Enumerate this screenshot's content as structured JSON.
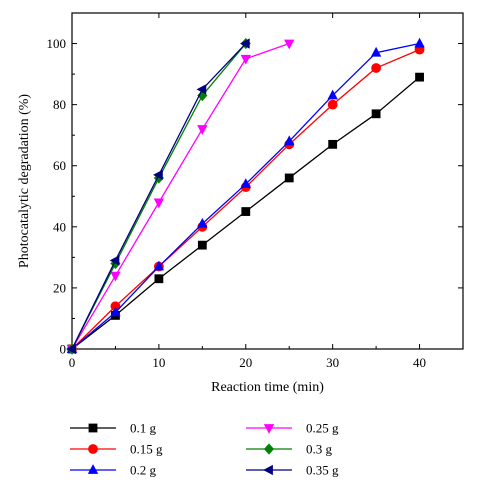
{
  "chart_data": {
    "type": "line",
    "title": "",
    "xlabel": "Reaction time (min)",
    "ylabel": "Photocatalytic degradation (%)",
    "xlim": [
      0,
      45
    ],
    "ylim": [
      0,
      110
    ],
    "xticks": [
      0,
      10,
      20,
      30,
      40
    ],
    "yticks": [
      0,
      20,
      40,
      60,
      80,
      100
    ],
    "grid": false,
    "legend_position": "bottom",
    "series": [
      {
        "name": "0.1 g",
        "color": "#000000",
        "marker": "square",
        "x": [
          0,
          5,
          10,
          15,
          20,
          25,
          30,
          35,
          40
        ],
        "y": [
          0,
          11,
          23,
          34,
          45,
          56,
          67,
          77,
          89
        ]
      },
      {
        "name": "0.15 g",
        "color": "#ff0000",
        "marker": "circle",
        "x": [
          0,
          5,
          10,
          15,
          20,
          25,
          30,
          35,
          40
        ],
        "y": [
          0,
          14,
          27,
          40,
          53,
          67,
          80,
          92,
          98
        ]
      },
      {
        "name": "0.2 g",
        "color": "#0000ff",
        "marker": "triangle-up",
        "x": [
          0,
          5,
          10,
          15,
          20,
          25,
          30,
          35,
          40
        ],
        "y": [
          0,
          12,
          27,
          41,
          54,
          68,
          83,
          97,
          100
        ]
      },
      {
        "name": "0.25 g",
        "color": "#ff00ff",
        "marker": "triangle-down",
        "x": [
          0,
          5,
          10,
          15,
          20,
          25
        ],
        "y": [
          0,
          24,
          48,
          72,
          95,
          100
        ]
      },
      {
        "name": "0.3 g",
        "color": "#008000",
        "marker": "diamond",
        "x": [
          0,
          5,
          10,
          15,
          20
        ],
        "y": [
          0,
          28,
          56,
          83,
          100
        ]
      },
      {
        "name": "0.35 g",
        "color": "#000080",
        "marker": "triangle-left",
        "x": [
          0,
          5,
          10,
          15,
          20
        ],
        "y": [
          0,
          29,
          57,
          85,
          100
        ]
      }
    ]
  }
}
